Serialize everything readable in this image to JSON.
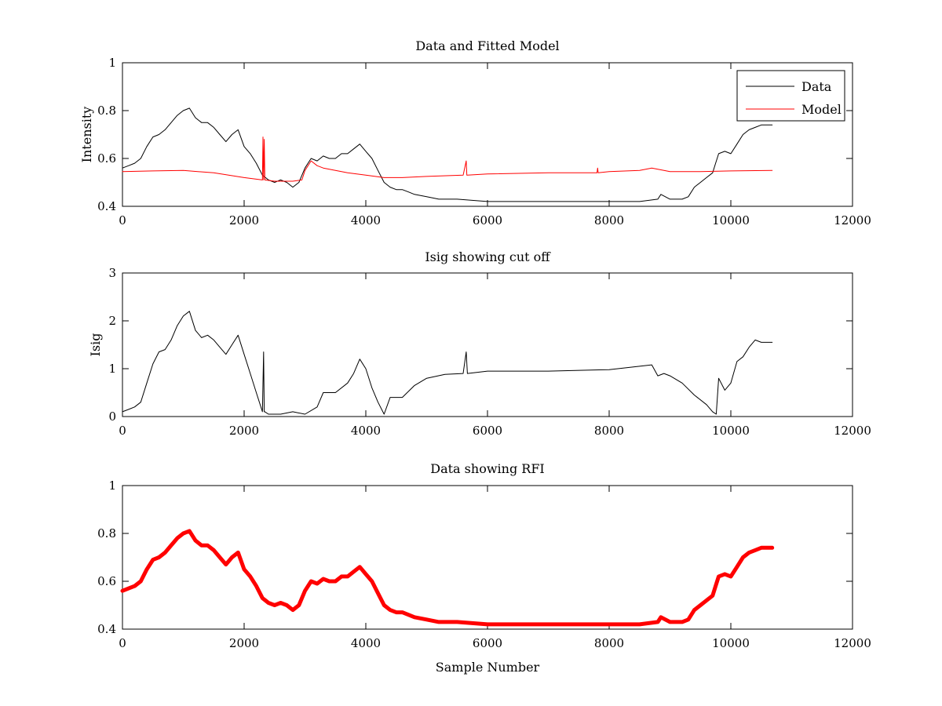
{
  "chart_data": [
    {
      "type": "line",
      "title": "Data and Fitted Model",
      "xlabel": "",
      "ylabel": "Intensity",
      "xlim": [
        0,
        12000
      ],
      "ylim": [
        0.4,
        1
      ],
      "xticks": [
        "0",
        "2000",
        "4000",
        "6000",
        "8000",
        "10000",
        "12000"
      ],
      "yticks": [
        "0.4",
        "0.6",
        "0.8",
        "1"
      ],
      "legend": {
        "placement": "top-right",
        "entries": [
          "Data",
          "Model"
        ]
      },
      "series": [
        {
          "name": "Data",
          "color": "#000000",
          "x": [
            0,
            100,
            200,
            300,
            400,
            500,
            600,
            700,
            800,
            900,
            1000,
            1100,
            1200,
            1300,
            1400,
            1500,
            1600,
            1700,
            1800,
            1900,
            2000,
            2100,
            2200,
            2300,
            2400,
            2500,
            2600,
            2700,
            2800,
            2900,
            3000,
            3100,
            3200,
            3300,
            3400,
            3500,
            3600,
            3700,
            3800,
            3900,
            4000,
            4100,
            4200,
            4300,
            4400,
            4500,
            4600,
            4700,
            4800,
            5000,
            5200,
            5500,
            6000,
            6500,
            7000,
            7500,
            8000,
            8500,
            8800,
            8850,
            9000,
            9200,
            9300,
            9400,
            9500,
            9600,
            9700,
            9750,
            9800,
            9900,
            10000,
            10100,
            10200,
            10300,
            10400,
            10500,
            10600,
            10680
          ],
          "y": [
            0.56,
            0.57,
            0.58,
            0.6,
            0.65,
            0.69,
            0.7,
            0.72,
            0.75,
            0.78,
            0.8,
            0.81,
            0.77,
            0.75,
            0.75,
            0.73,
            0.7,
            0.67,
            0.7,
            0.72,
            0.65,
            0.62,
            0.58,
            0.53,
            0.51,
            0.5,
            0.51,
            0.5,
            0.48,
            0.5,
            0.56,
            0.6,
            0.59,
            0.61,
            0.6,
            0.6,
            0.62,
            0.62,
            0.64,
            0.66,
            0.63,
            0.6,
            0.55,
            0.5,
            0.48,
            0.47,
            0.47,
            0.46,
            0.45,
            0.44,
            0.43,
            0.43,
            0.42,
            0.42,
            0.42,
            0.42,
            0.42,
            0.42,
            0.43,
            0.45,
            0.43,
            0.43,
            0.44,
            0.48,
            0.5,
            0.52,
            0.54,
            0.58,
            0.62,
            0.63,
            0.62,
            0.66,
            0.7,
            0.72,
            0.73,
            0.74,
            0.74,
            0.74
          ]
        },
        {
          "name": "Model",
          "color": "#ff0000",
          "x": [
            0,
            500,
            1000,
            1500,
            2000,
            2300,
            2310,
            2320,
            2330,
            2340,
            2500,
            2800,
            2950,
            3000,
            3100,
            3200,
            3300,
            3500,
            3700,
            4000,
            4300,
            4600,
            5000,
            5600,
            5650,
            5660,
            5670,
            6000,
            7000,
            7800,
            7810,
            7820,
            8000,
            8500,
            8700,
            9000,
            9500,
            10000,
            10680
          ],
          "y": [
            0.545,
            0.548,
            0.55,
            0.54,
            0.52,
            0.51,
            0.69,
            0.51,
            0.68,
            0.51,
            0.505,
            0.505,
            0.51,
            0.55,
            0.59,
            0.57,
            0.56,
            0.55,
            0.54,
            0.53,
            0.52,
            0.52,
            0.525,
            0.53,
            0.59,
            0.53,
            0.53,
            0.535,
            0.54,
            0.54,
            0.56,
            0.54,
            0.545,
            0.55,
            0.56,
            0.545,
            0.545,
            0.548,
            0.55
          ]
        }
      ]
    },
    {
      "type": "line",
      "title": "Isig showing cut off",
      "xlabel": "",
      "ylabel": "Isig",
      "xlim": [
        0,
        12000
      ],
      "ylim": [
        0,
        3
      ],
      "xticks": [
        "0",
        "2000",
        "4000",
        "6000",
        "8000",
        "10000",
        "12000"
      ],
      "yticks": [
        "0",
        "1",
        "2",
        "3"
      ],
      "series": [
        {
          "color": "#000000",
          "x": [
            0,
            100,
            200,
            300,
            400,
            500,
            600,
            700,
            800,
            900,
            1000,
            1100,
            1200,
            1300,
            1400,
            1500,
            1600,
            1700,
            1800,
            1900,
            2000,
            2100,
            2200,
            2300,
            2320,
            2330,
            2340,
            2400,
            2600,
            2800,
            3000,
            3200,
            3300,
            3500,
            3700,
            3800,
            3900,
            4000,
            4100,
            4200,
            4300,
            4400,
            4600,
            4800,
            5000,
            5300,
            5600,
            5650,
            5670,
            6000,
            7000,
            8000,
            8500,
            8700,
            8800,
            8900,
            9000,
            9200,
            9400,
            9600,
            9700,
            9760,
            9800,
            9900,
            10000,
            10100,
            10200,
            10300,
            10400,
            10500,
            10680
          ],
          "y": [
            0.1,
            0.15,
            0.2,
            0.3,
            0.7,
            1.1,
            1.35,
            1.4,
            1.6,
            1.9,
            2.1,
            2.2,
            1.8,
            1.65,
            1.7,
            1.6,
            1.45,
            1.3,
            1.5,
            1.7,
            1.3,
            0.9,
            0.5,
            0.1,
            1.35,
            0.1,
            0.1,
            0.05,
            0.05,
            0.1,
            0.05,
            0.2,
            0.5,
            0.5,
            0.7,
            0.9,
            1.2,
            1.0,
            0.6,
            0.3,
            0.05,
            0.4,
            0.4,
            0.65,
            0.8,
            0.88,
            0.9,
            1.35,
            0.9,
            0.95,
            0.95,
            0.98,
            1.05,
            1.08,
            0.85,
            0.9,
            0.85,
            0.7,
            0.45,
            0.25,
            0.1,
            0.05,
            0.8,
            0.55,
            0.7,
            1.15,
            1.25,
            1.45,
            1.6,
            1.55,
            1.55
          ]
        }
      ]
    },
    {
      "type": "line",
      "title": "Data showing RFI",
      "xlabel": "Sample Number",
      "ylabel": "",
      "xlim": [
        0,
        12000
      ],
      "ylim": [
        0.4,
        1
      ],
      "xticks": [
        "0",
        "2000",
        "4000",
        "6000",
        "8000",
        "10000",
        "12000"
      ],
      "yticks": [
        "0.4",
        "0.6",
        "0.8",
        "1"
      ],
      "series": [
        {
          "color": "#ff0000",
          "x": [
            0,
            100,
            200,
            300,
            400,
            500,
            600,
            700,
            800,
            900,
            1000,
            1100,
            1200,
            1300,
            1400,
            1500,
            1600,
            1700,
            1800,
            1900,
            2000,
            2100,
            2200,
            2300,
            2400,
            2500,
            2600,
            2700,
            2800,
            2900,
            3000,
            3100,
            3200,
            3300,
            3400,
            3500,
            3600,
            3700,
            3800,
            3900,
            4000,
            4100,
            4200,
            4300,
            4400,
            4500,
            4600,
            4700,
            4800,
            5000,
            5200,
            5500,
            6000,
            6500,
            7000,
            7500,
            8000,
            8500,
            8800,
            8850,
            9000,
            9200,
            9300,
            9400,
            9500,
            9600,
            9700,
            9750,
            9800,
            9900,
            10000,
            10100,
            10200,
            10300,
            10400,
            10500,
            10600,
            10680
          ],
          "y": [
            0.56,
            0.57,
            0.58,
            0.6,
            0.65,
            0.69,
            0.7,
            0.72,
            0.75,
            0.78,
            0.8,
            0.81,
            0.77,
            0.75,
            0.75,
            0.73,
            0.7,
            0.67,
            0.7,
            0.72,
            0.65,
            0.62,
            0.58,
            0.53,
            0.51,
            0.5,
            0.51,
            0.5,
            0.48,
            0.5,
            0.56,
            0.6,
            0.59,
            0.61,
            0.6,
            0.6,
            0.62,
            0.62,
            0.64,
            0.66,
            0.63,
            0.6,
            0.55,
            0.5,
            0.48,
            0.47,
            0.47,
            0.46,
            0.45,
            0.44,
            0.43,
            0.43,
            0.42,
            0.42,
            0.42,
            0.42,
            0.42,
            0.42,
            0.43,
            0.45,
            0.43,
            0.43,
            0.44,
            0.48,
            0.5,
            0.52,
            0.54,
            0.58,
            0.62,
            0.63,
            0.62,
            0.66,
            0.7,
            0.72,
            0.73,
            0.74,
            0.74,
            0.74
          ]
        }
      ]
    }
  ]
}
